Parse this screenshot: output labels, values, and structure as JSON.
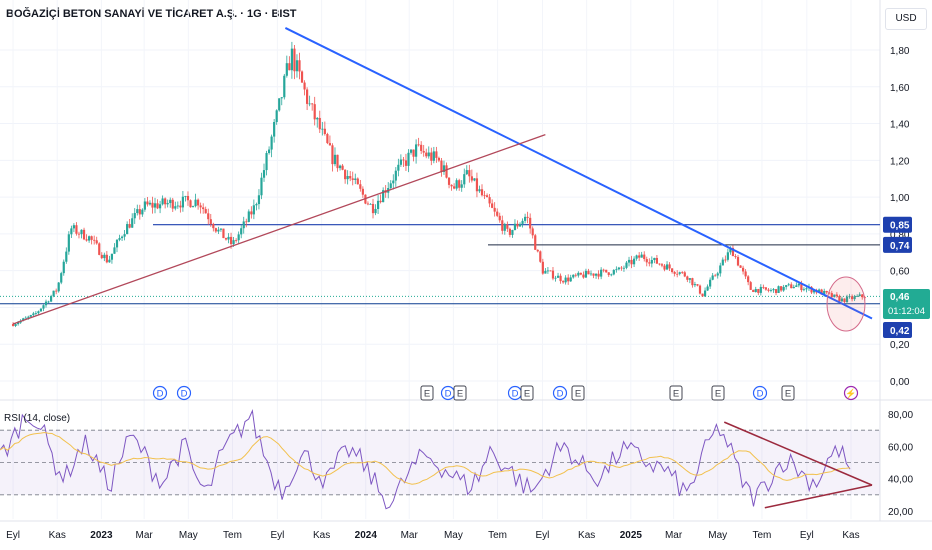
{
  "header": {
    "title": "BOĞAZİÇİ BETON SANAYİ VE TİCARET A.Ş. · 1G · BIST",
    "currency": "USD"
  },
  "price_axis": {
    "ticks": [
      "1,80",
      "1,60",
      "1,40",
      "1,20",
      "1,00",
      "0,80",
      "0,60",
      "0,40",
      "0,20",
      "0,00"
    ]
  },
  "price_tags": {
    "level_085": "0,85",
    "level_074": "0,74",
    "last_price": "0,46",
    "countdown": "01:12:04",
    "level_042": "0,42"
  },
  "rsi_axis": {
    "ticks": [
      "80,00",
      "60,00",
      "40,00",
      "20,00"
    ]
  },
  "time_axis": {
    "labels": [
      "Eyl",
      "Kas",
      "2023",
      "Mar",
      "May",
      "Tem",
      "Eyl",
      "Kas",
      "2024",
      "Mar",
      "May",
      "Tem",
      "Eyl",
      "Kas",
      "2025",
      "Mar",
      "May",
      "Tem",
      "Eyl",
      "Kas"
    ]
  },
  "events": [
    "D",
    "D",
    "E",
    "D",
    "E",
    "D",
    "E",
    "D",
    "E",
    "E",
    "D",
    "E",
    "⚡"
  ],
  "rsi_label": "RSI (14, close)",
  "colors": {
    "up": "#26a69a",
    "down": "#ef5350",
    "trendline": "#2962ff",
    "support_line": "#b2485a",
    "rsi_line": "#7e57c2",
    "rsi_ma": "#f2c14e",
    "tag_blue": "#1e40af",
    "tag_green": "#22ab94"
  },
  "chart_data": [
    {
      "type": "candlestick",
      "title": "BOĞAZİÇİ BETON SANAYİ VE TİCARET A.Ş. · 1G · BIST",
      "y_axis": {
        "min": 0,
        "max": 1.8,
        "unit": "USD"
      },
      "x_range": [
        "2022-09",
        "2025-11"
      ],
      "close_path": [
        {
          "x": "2022-09-01",
          "y": 0.31
        },
        {
          "x": "2022-10-01",
          "y": 0.36
        },
        {
          "x": "2022-11-01",
          "y": 0.5
        },
        {
          "x": "2022-11-20",
          "y": 0.83
        },
        {
          "x": "2022-12-15",
          "y": 0.78
        },
        {
          "x": "2023-01-10",
          "y": 0.65
        },
        {
          "x": "2023-02-01",
          "y": 0.82
        },
        {
          "x": "2023-03-01",
          "y": 0.95
        },
        {
          "x": "2023-04-10",
          "y": 0.97
        },
        {
          "x": "2023-05-15",
          "y": 0.98
        },
        {
          "x": "2023-06-10",
          "y": 0.82
        },
        {
          "x": "2023-07-01",
          "y": 0.74
        },
        {
          "x": "2023-08-01",
          "y": 0.95
        },
        {
          "x": "2023-09-01",
          "y": 1.45
        },
        {
          "x": "2023-09-20",
          "y": 1.78
        },
        {
          "x": "2023-10-15",
          "y": 1.5
        },
        {
          "x": "2023-11-15",
          "y": 1.22
        },
        {
          "x": "2023-12-15",
          "y": 1.08
        },
        {
          "x": "2024-01-10",
          "y": 0.94
        },
        {
          "x": "2024-02-15",
          "y": 1.15
        },
        {
          "x": "2024-03-10",
          "y": 1.26
        },
        {
          "x": "2024-04-10",
          "y": 1.2
        },
        {
          "x": "2024-05-01",
          "y": 1.05
        },
        {
          "x": "2024-05-20",
          "y": 1.12
        },
        {
          "x": "2024-06-20",
          "y": 0.95
        },
        {
          "x": "2024-07-15",
          "y": 0.8
        },
        {
          "x": "2024-08-10",
          "y": 0.9
        },
        {
          "x": "2024-09-01",
          "y": 0.6
        },
        {
          "x": "2024-10-01",
          "y": 0.55
        },
        {
          "x": "2024-11-01",
          "y": 0.58
        },
        {
          "x": "2024-12-15",
          "y": 0.6
        },
        {
          "x": "2025-01-15",
          "y": 0.68
        },
        {
          "x": "2025-02-15",
          "y": 0.63
        },
        {
          "x": "2025-03-20",
          "y": 0.57
        },
        {
          "x": "2025-04-10",
          "y": 0.47
        },
        {
          "x": "2025-05-01",
          "y": 0.6
        },
        {
          "x": "2025-05-20",
          "y": 0.72
        },
        {
          "x": "2025-06-15",
          "y": 0.5
        },
        {
          "x": "2025-07-15",
          "y": 0.49
        },
        {
          "x": "2025-08-15",
          "y": 0.52
        },
        {
          "x": "2025-09-15",
          "y": 0.49
        },
        {
          "x": "2025-10-20",
          "y": 0.44
        },
        {
          "x": "2025-11-15",
          "y": 0.46
        }
      ],
      "horizontal_levels": [
        0.85,
        0.74,
        0.42
      ],
      "last_price": 0.46,
      "trendlines": [
        {
          "name": "descending resistance",
          "from": {
            "x": "2023-09-12",
            "y": 1.92
          },
          "to": {
            "x": "2025-11-30",
            "y": 0.34
          }
        },
        {
          "name": "ascending support",
          "from": {
            "x": "2022-09-01",
            "y": 0.31
          },
          "to": {
            "x": "2024-09-05",
            "y": 1.34
          }
        }
      ]
    },
    {
      "type": "line",
      "title": "RSI (14, close)",
      "y_axis": {
        "min": 20,
        "max": 80
      },
      "bands": [
        70,
        50,
        30
      ],
      "series": [
        {
          "values": [
            55,
            62,
            76,
            80,
            68,
            50,
            40,
            55,
            62,
            48,
            35,
            52,
            66,
            58,
            45,
            38,
            52,
            60,
            40,
            30,
            50,
            62,
            70,
            80,
            60,
            42,
            32,
            48,
            55,
            45,
            38,
            50,
            58,
            52,
            42,
            30,
            25,
            38,
            48,
            55,
            50,
            45,
            40,
            35,
            42,
            58,
            50,
            44,
            36,
            32,
            44,
            56,
            60,
            50,
            45,
            40,
            48,
            58,
            56,
            52,
            48,
            46,
            38,
            30,
            45,
            62,
            72,
            58,
            40,
            28,
            34,
            44,
            52,
            48,
            40,
            38,
            52,
            58,
            46
          ]
        }
      ],
      "triangle": [
        {
          "x": "2025-05-10",
          "y": 75
        },
        {
          "x": "2025-07-05",
          "y": 22
        },
        {
          "x": "2025-11-30",
          "y": 36
        }
      ]
    }
  ]
}
